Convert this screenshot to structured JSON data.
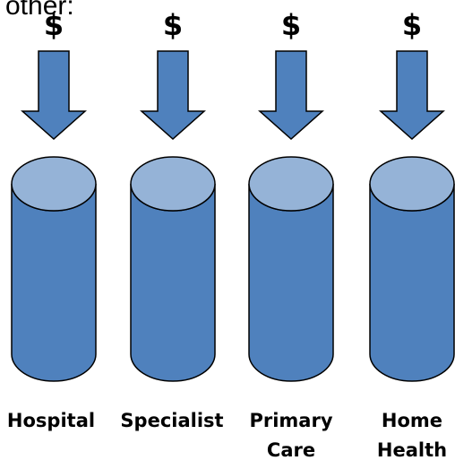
{
  "top_text": "other:",
  "colors": {
    "body": "#4f81bd",
    "top": "#95b3d7",
    "outline": "#000000",
    "arrow": "#4f81bd"
  },
  "columns": [
    {
      "id": "hospital",
      "symbol": "$",
      "label_lines": [
        "Hospital"
      ]
    },
    {
      "id": "specialist",
      "symbol": "$",
      "label_lines": [
        "Specialist"
      ]
    },
    {
      "id": "primary-care",
      "symbol": "$",
      "label_lines": [
        "Primary",
        "Care"
      ]
    },
    {
      "id": "home-health",
      "symbol": "$",
      "label_lines": [
        "Home",
        "Health"
      ]
    }
  ]
}
